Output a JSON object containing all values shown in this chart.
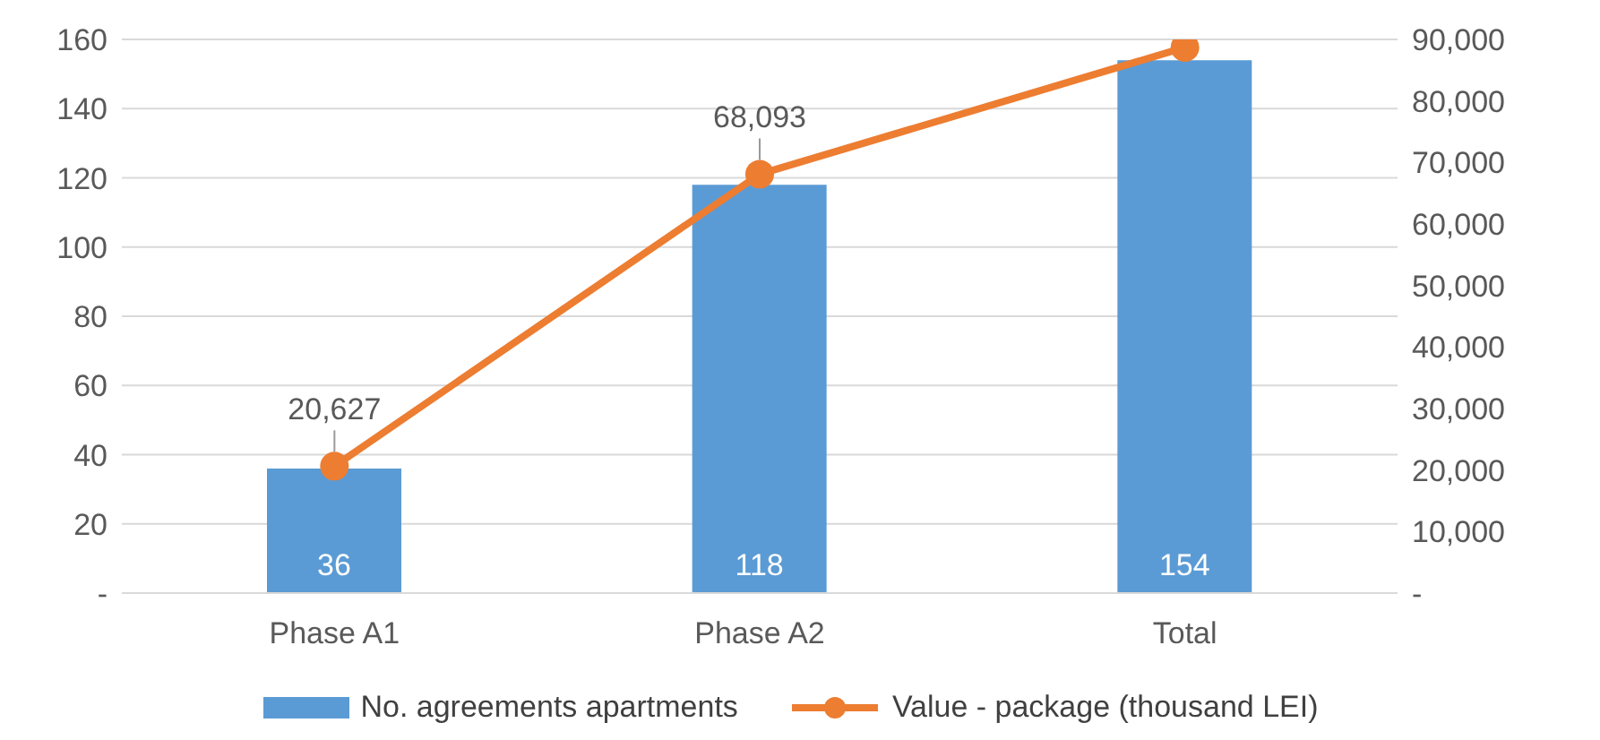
{
  "chart_data": {
    "type": "bar",
    "categories": [
      "Phase A1",
      "Phase A2",
      "Total"
    ],
    "series": [
      {
        "name": "No. agreements apartments",
        "color": "#5b9bd5",
        "values": [
          36,
          118,
          154
        ],
        "value_labels": [
          "36",
          "118",
          "154"
        ]
      },
      {
        "name": "Value - package (thousand LEI)",
        "type": "line",
        "axis": "y2",
        "color": "#ed7d31",
        "values": [
          20627,
          68093,
          88700
        ],
        "value_labels": [
          "20,627",
          "68,093",
          null
        ],
        "marker": "circle"
      }
    ],
    "ylim": [
      0,
      160
    ],
    "yticks": [
      {
        "value": 0,
        "label": "-"
      },
      20,
      40,
      60,
      80,
      100,
      120,
      140,
      160
    ],
    "y2lim": [
      0,
      90000
    ],
    "y2ticks": [
      {
        "value": 0,
        "label": "-"
      },
      {
        "value": 10000,
        "label": "10,000"
      },
      {
        "value": 20000,
        "label": "20,000"
      },
      {
        "value": 30000,
        "label": "30,000"
      },
      {
        "value": 40000,
        "label": "40,000"
      },
      {
        "value": 50000,
        "label": "50,000"
      },
      {
        "value": 60000,
        "label": "60,000"
      },
      {
        "value": 70000,
        "label": "70,000"
      },
      {
        "value": 80000,
        "label": "80,000"
      },
      {
        "value": 90000,
        "label": "90,000"
      }
    ],
    "grid": "y",
    "legend": "bottom"
  }
}
